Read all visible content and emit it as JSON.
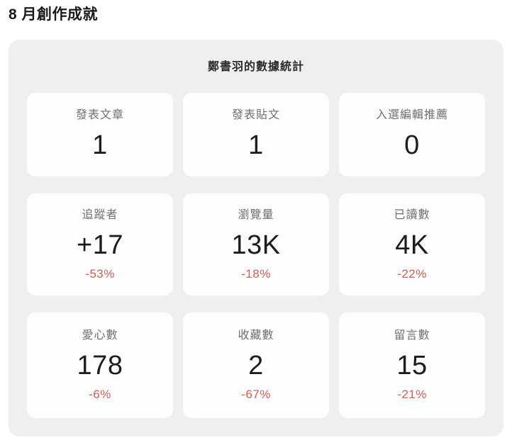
{
  "page": {
    "title": "8 月創作成就"
  },
  "panel": {
    "heading": "鄭書羽的數據統計",
    "stats": [
      {
        "label": "發表文章",
        "value": "1"
      },
      {
        "label": "發表貼文",
        "value": "1"
      },
      {
        "label": "入選編輯推薦",
        "value": "0"
      },
      {
        "label": "追蹤者",
        "value": "+17",
        "delta": "-53%"
      },
      {
        "label": "瀏覽量",
        "value": "13K",
        "delta": "-18%"
      },
      {
        "label": "已讀數",
        "value": "4K",
        "delta": "-22%"
      },
      {
        "label": "愛心數",
        "value": "178",
        "delta": "-6%"
      },
      {
        "label": "收藏數",
        "value": "2",
        "delta": "-67%"
      },
      {
        "label": "留言數",
        "value": "15",
        "delta": "-21%"
      }
    ],
    "colors": {
      "panel_bg": "#f1efed",
      "card_bg": "#fefefe",
      "label_text": "#6f6f6f",
      "value_text": "#1d1d1d",
      "delta_negative": "#e05b4f"
    }
  }
}
